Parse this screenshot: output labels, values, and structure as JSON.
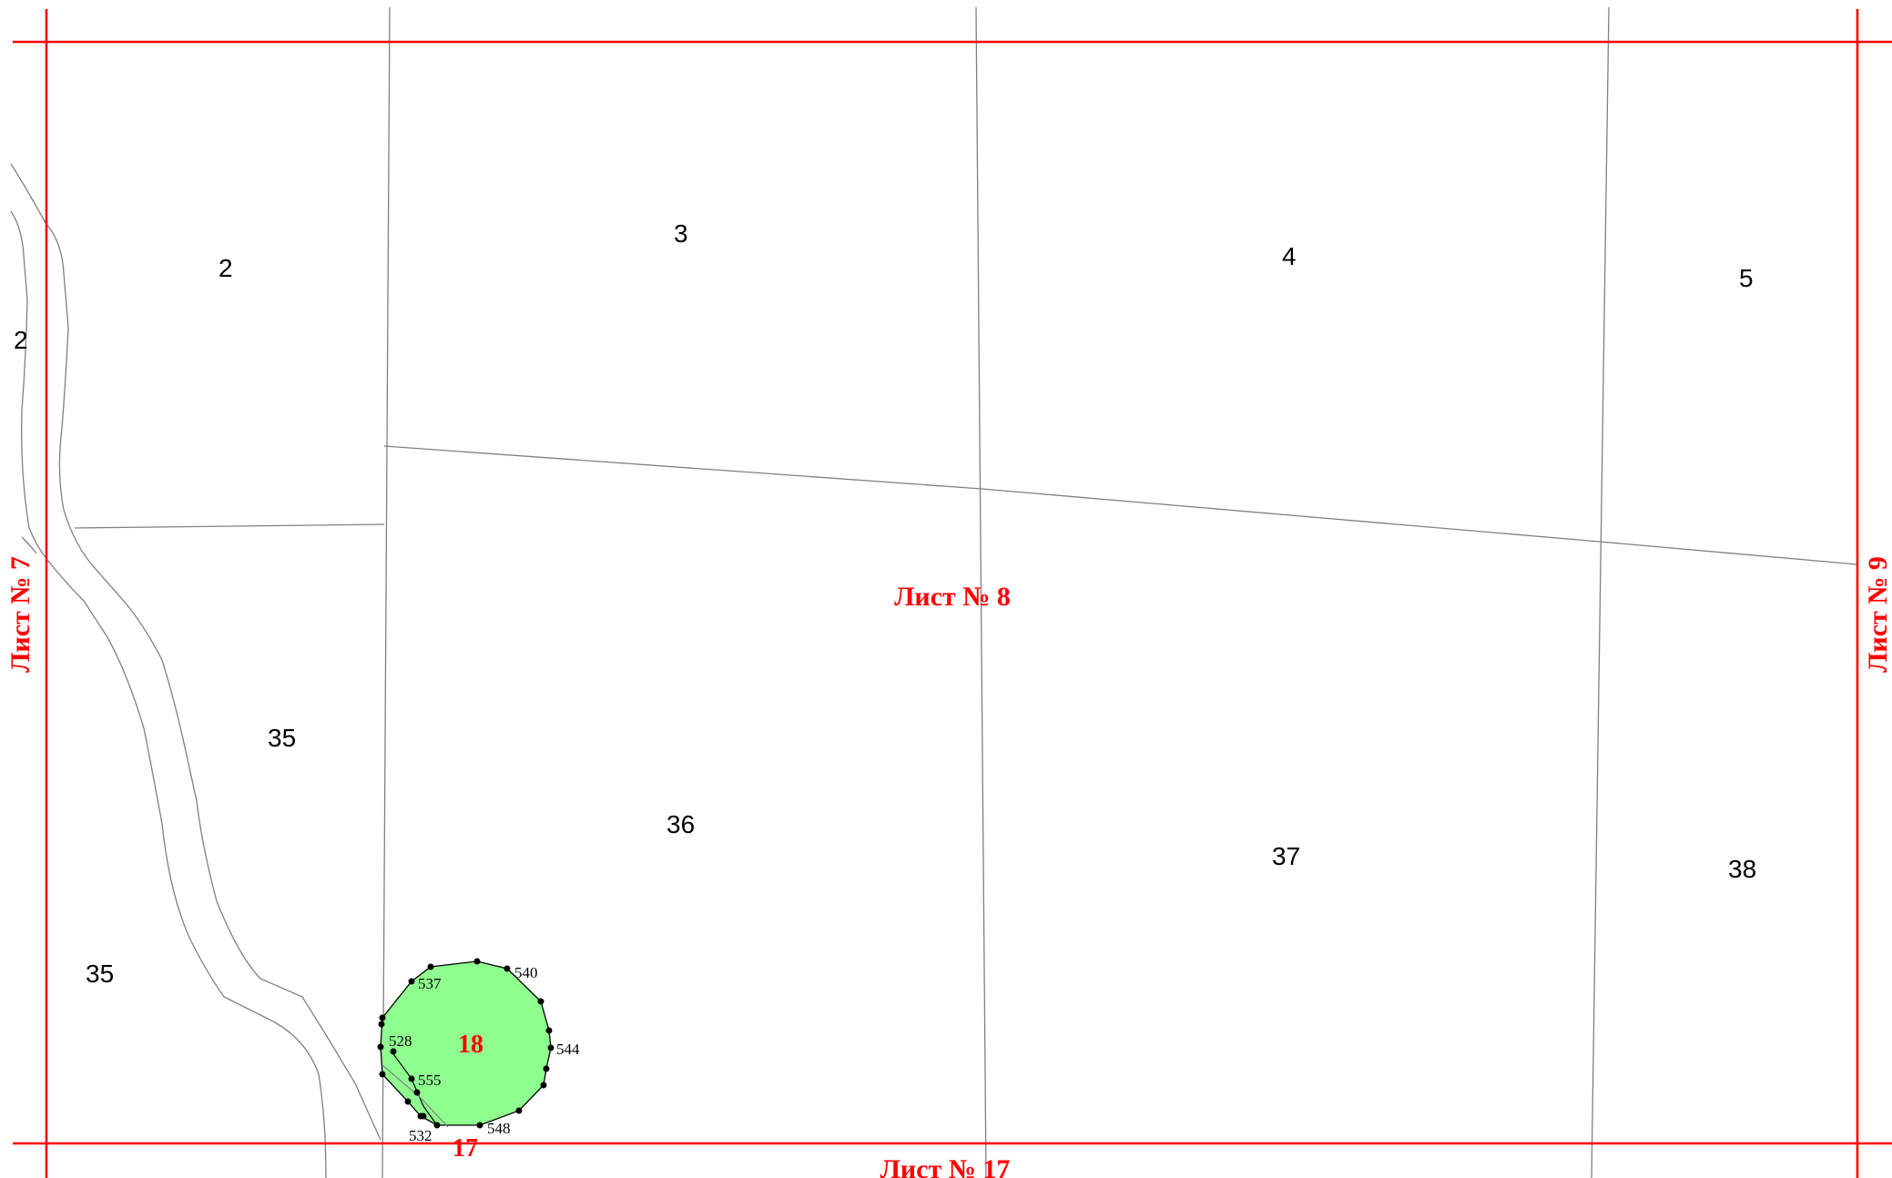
{
  "sheets": {
    "current": "Лист № 8",
    "left": "Лист № 7",
    "right": "Лист № 9",
    "bottom": "Лист № 17"
  },
  "parcels": [
    "2",
    "2",
    "3",
    "4",
    "5",
    "35",
    "35",
    "36",
    "37",
    "38"
  ],
  "plot": {
    "label": "18",
    "fill_color": "#8fff8f",
    "adjacent_label": "17"
  },
  "points": [
    "537",
    "540",
    "528",
    "544",
    "555",
    "532",
    "548"
  ],
  "colors": {
    "frame": "#ff0000",
    "boundary": "#808080",
    "plot_fill": "#8fff8f"
  }
}
